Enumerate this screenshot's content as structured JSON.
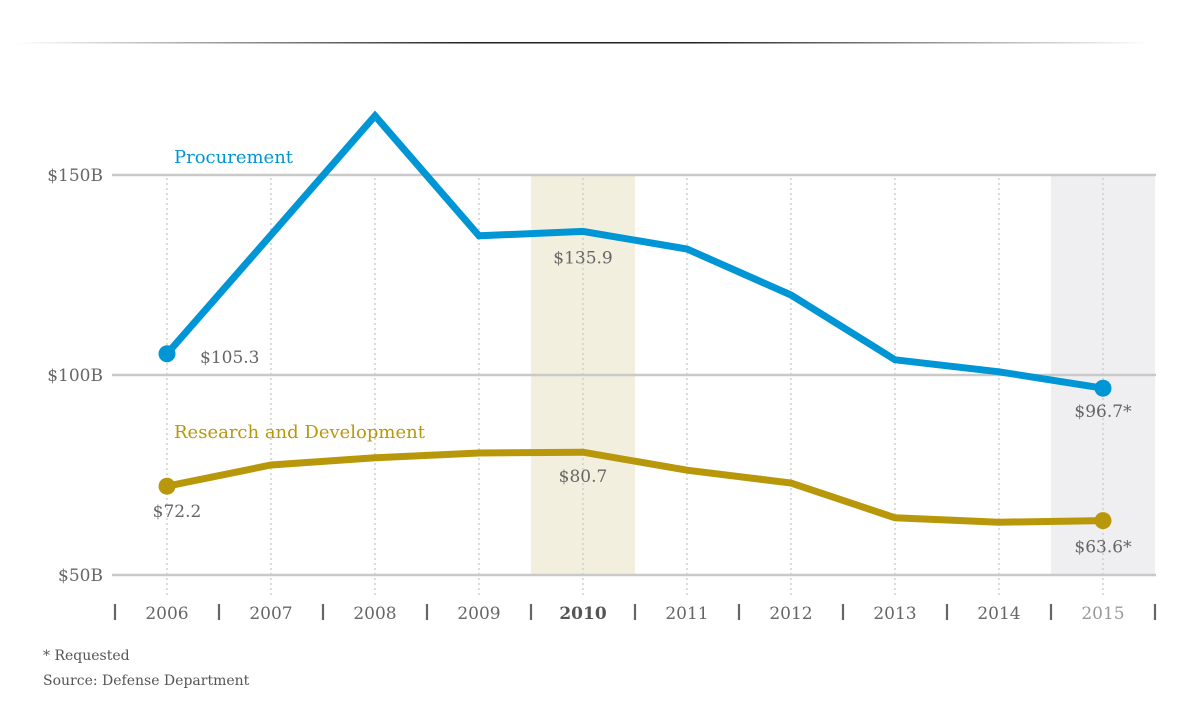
{
  "chart_data": {
    "type": "line",
    "title": "",
    "xlabel": "",
    "ylabel": "",
    "x": [
      2006,
      2007,
      2008,
      2009,
      2010,
      2011,
      2012,
      2013,
      2014,
      2015
    ],
    "x_tick_labels": [
      "2006",
      "2007",
      "2008",
      "2009",
      "2010",
      "2011",
      "2012",
      "2013",
      "2014",
      "2015"
    ],
    "emphasized_year": "2010",
    "requested_year": "2015",
    "y_ticks": [
      50,
      100,
      150
    ],
    "y_tick_labels": [
      "$50B",
      "$100B",
      "$150B"
    ],
    "ylim": [
      50,
      165
    ],
    "grid": true,
    "highlight_bands": [
      {
        "x": 2010,
        "color": "#f2efdf"
      },
      {
        "x": 2015,
        "color": "#efeff1"
      }
    ],
    "series": [
      {
        "name": "Procurement",
        "color": "#0096d6",
        "values": [
          105.3,
          135.0,
          164.8,
          134.8,
          135.9,
          131.5,
          120.0,
          103.8,
          100.8,
          96.7
        ],
        "labels": [
          {
            "index": 0,
            "text": "$105.3"
          },
          {
            "index": 4,
            "text": "$135.9"
          },
          {
            "index": 9,
            "text": "$96.7*"
          }
        ]
      },
      {
        "name": "Research and Development",
        "color": "#b8980a",
        "values": [
          72.2,
          77.5,
          79.3,
          80.5,
          80.7,
          76.2,
          73.0,
          64.3,
          63.2,
          63.6
        ],
        "labels": [
          {
            "index": 0,
            "text": "$72.2"
          },
          {
            "index": 4,
            "text": "$80.7"
          },
          {
            "index": 9,
            "text": "$63.6*"
          }
        ]
      }
    ]
  },
  "footer": {
    "note": "* Requested",
    "source": "Source: Defense Department"
  }
}
